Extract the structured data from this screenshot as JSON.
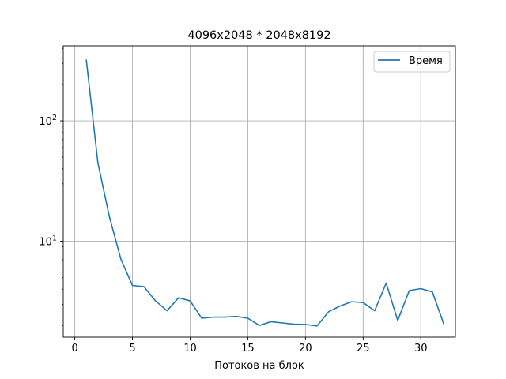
{
  "chart_data": {
    "type": "line",
    "title": "4096x2048 * 2048x8192",
    "xlabel": "Потоков на блок",
    "ylabel": "",
    "y_scale": "log",
    "grid": true,
    "legend_position": "top-right",
    "xlim": [
      -1,
      33
    ],
    "ylim": [
      1.6,
      420
    ],
    "x_ticks": [
      0,
      5,
      10,
      15,
      20,
      25,
      30
    ],
    "y_ticks": [
      {
        "value": 10,
        "base": "10",
        "exp": "1"
      },
      {
        "value": 100,
        "base": "10",
        "exp": "2"
      }
    ],
    "series": [
      {
        "name": "Время",
        "color": "#1f77b4",
        "x": [
          1,
          2,
          3,
          4,
          5,
          6,
          7,
          8,
          9,
          10,
          11,
          12,
          13,
          14,
          15,
          16,
          17,
          18,
          19,
          20,
          21,
          22,
          23,
          24,
          25,
          26,
          27,
          28,
          29,
          30,
          31,
          32
        ],
        "y": [
          320,
          45,
          16,
          7.1,
          4.3,
          4.2,
          3.2,
          2.65,
          3.4,
          3.2,
          2.3,
          2.35,
          2.35,
          2.38,
          2.3,
          2.0,
          2.15,
          2.1,
          2.05,
          2.04,
          1.98,
          2.6,
          2.9,
          3.15,
          3.1,
          2.65,
          4.5,
          2.2,
          3.9,
          4.05,
          3.8,
          2.05
        ]
      }
    ]
  }
}
